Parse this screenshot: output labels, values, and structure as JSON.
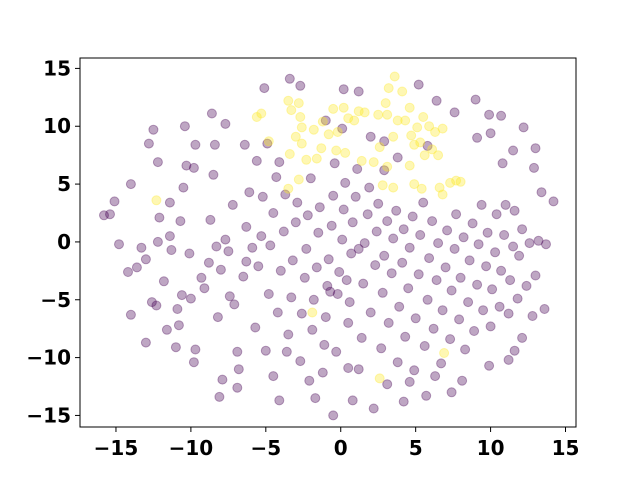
{
  "colors": {
    "purple": "#440154",
    "yellow": "#fde725",
    "axis": "#000000",
    "background": "#ffffff"
  },
  "marker_alpha": 0.35,
  "chart_data": {
    "type": "scatter",
    "title": "",
    "xlabel": "",
    "ylabel": "",
    "xlim": [
      -17.4,
      15.7
    ],
    "ylim": [
      -16.0,
      15.9
    ],
    "xticks": [
      -15,
      -10,
      -5,
      0,
      5,
      10,
      15
    ],
    "yticks": [
      -15,
      -10,
      -5,
      0,
      5,
      10,
      15
    ],
    "xtick_labels": [
      "−15",
      "−10",
      "−5",
      "0",
      "5",
      "10",
      "15"
    ],
    "ytick_labels": [
      "−15",
      "−10",
      "−5",
      "0",
      "5",
      "10",
      "15"
    ],
    "grid": false,
    "legend": false,
    "series": [
      {
        "color": "#fde725",
        "points": [
          [
            -5.6,
            10.8
          ],
          [
            -5.3,
            11.1
          ],
          [
            -4.8,
            8.7
          ],
          [
            -3.5,
            12.2
          ],
          [
            -3.3,
            11.4
          ],
          [
            -2.8,
            12.0
          ],
          [
            -2.7,
            10.8
          ],
          [
            -2.6,
            9.9
          ],
          [
            -3.0,
            9.1
          ],
          [
            -2.6,
            8.5
          ],
          [
            -1.8,
            9.7
          ],
          [
            -1.2,
            10.4
          ],
          [
            -0.8,
            9.3
          ],
          [
            -0.5,
            11.5
          ],
          [
            -0.2,
            9.5
          ],
          [
            0.2,
            11.6
          ],
          [
            0.5,
            10.7
          ],
          [
            0.9,
            10.5
          ],
          [
            1.2,
            11.3
          ],
          [
            1.6,
            11.2
          ],
          [
            2.5,
            11.0
          ],
          [
            3.0,
            12.0
          ],
          [
            3.1,
            11.0
          ],
          [
            3.2,
            13.3
          ],
          [
            3.6,
            14.3
          ],
          [
            4.1,
            13.0
          ],
          [
            3.8,
            10.5
          ],
          [
            3.5,
            9.1
          ],
          [
            4.3,
            10.5
          ],
          [
            4.6,
            11.6
          ],
          [
            4.7,
            9.2
          ],
          [
            5.1,
            9.9
          ],
          [
            5.5,
            10.8
          ],
          [
            5.9,
            10.0
          ],
          [
            6.3,
            9.5
          ],
          [
            6.8,
            9.8
          ],
          [
            4.9,
            8.4
          ],
          [
            5.3,
            8.6
          ],
          [
            5.6,
            7.5
          ],
          [
            6.1,
            8.0
          ],
          [
            6.5,
            7.5
          ],
          [
            4.6,
            6.6
          ],
          [
            4.9,
            5.0
          ],
          [
            5.4,
            4.6
          ],
          [
            6.6,
            4.7
          ],
          [
            6.8,
            4.1
          ],
          [
            7.3,
            5.1
          ],
          [
            7.7,
            5.3
          ],
          [
            8.0,
            5.2
          ],
          [
            -3.4,
            7.6
          ],
          [
            -2.3,
            7.1
          ],
          [
            -1.6,
            7.2
          ],
          [
            -1.3,
            8.1
          ],
          [
            -0.3,
            7.9
          ],
          [
            0.3,
            7.7
          ],
          [
            1.4,
            7.0
          ],
          [
            2.2,
            6.9
          ],
          [
            2.6,
            8.2
          ],
          [
            3.1,
            6.5
          ],
          [
            2.8,
            4.9
          ],
          [
            3.5,
            4.7
          ],
          [
            -12.3,
            3.6
          ],
          [
            -3.5,
            4.6
          ],
          [
            -2.8,
            5.4
          ],
          [
            -1.9,
            -6.1
          ],
          [
            6.9,
            -9.6
          ],
          [
            2.6,
            -11.8
          ]
        ]
      },
      {
        "color": "#440154",
        "points": [
          [
            -15.8,
            2.3
          ],
          [
            -15.4,
            2.4
          ],
          [
            -14.8,
            -0.2
          ],
          [
            -14.2,
            -2.6
          ],
          [
            -14.0,
            5.0
          ],
          [
            -13.6,
            -2.2
          ],
          [
            -13.0,
            -1.5
          ],
          [
            -12.6,
            -5.2
          ],
          [
            -12.3,
            -5.5
          ],
          [
            -12.2,
            0.0
          ],
          [
            -12.1,
            2.1
          ],
          [
            -11.6,
            -7.6
          ],
          [
            -11.8,
            -3.4
          ],
          [
            -11.4,
            3.4
          ],
          [
            -11.3,
            -0.7
          ],
          [
            -10.9,
            -5.8
          ],
          [
            -10.8,
            -7.2
          ],
          [
            -10.6,
            -4.6
          ],
          [
            -10.7,
            1.8
          ],
          [
            -10.5,
            4.7
          ],
          [
            -10.4,
            10.0
          ],
          [
            -10.1,
            -1.0
          ],
          [
            -10.0,
            -4.9
          ],
          [
            -9.8,
            6.4
          ],
          [
            -9.7,
            -9.3
          ],
          [
            -9.3,
            -3.1
          ],
          [
            -9.1,
            -4.0
          ],
          [
            -8.8,
            -1.8
          ],
          [
            -8.7,
            1.9
          ],
          [
            -8.5,
            5.8
          ],
          [
            -8.4,
            8.4
          ],
          [
            -8.2,
            -6.5
          ],
          [
            -8.0,
            -2.4
          ],
          [
            -7.7,
            0.2
          ],
          [
            -7.5,
            -0.8
          ],
          [
            -7.2,
            3.2
          ],
          [
            -7.1,
            -5.4
          ],
          [
            -6.9,
            -9.5
          ],
          [
            -6.8,
            -11.0
          ],
          [
            -6.5,
            -3.0
          ],
          [
            -6.3,
            1.3
          ],
          [
            -6.1,
            4.3
          ],
          [
            -5.9,
            -0.5
          ],
          [
            -5.7,
            -7.4
          ],
          [
            -5.5,
            -2.1
          ],
          [
            -5.3,
            0.5
          ],
          [
            -5.2,
            3.9
          ],
          [
            -5.0,
            -9.4
          ],
          [
            -4.8,
            -4.5
          ],
          [
            -4.7,
            -0.3
          ],
          [
            -4.5,
            2.5
          ],
          [
            -4.3,
            5.6
          ],
          [
            -4.2,
            -6.1
          ],
          [
            -4.0,
            -2.5
          ],
          [
            -3.8,
            0.9
          ],
          [
            -3.7,
            4.1
          ],
          [
            -3.5,
            -8.0
          ],
          [
            -3.3,
            -4.8
          ],
          [
            -3.2,
            -1.6
          ],
          [
            -3.0,
            1.7
          ],
          [
            -2.9,
            3.4
          ],
          [
            -2.7,
            -10.3
          ],
          [
            -2.6,
            -6.2
          ],
          [
            -2.4,
            -3.1
          ],
          [
            -2.3,
            -0.6
          ],
          [
            -2.2,
            2.3
          ],
          [
            -2.0,
            5.5
          ],
          [
            -1.9,
            -7.6
          ],
          [
            -1.8,
            -5.0
          ],
          [
            -1.6,
            -2.2
          ],
          [
            -1.5,
            0.8
          ],
          [
            -1.4,
            3.0
          ],
          [
            -1.2,
            -11.3
          ],
          [
            -1.1,
            -8.9
          ],
          [
            -1.0,
            -6.5
          ],
          [
            -0.9,
            -3.8
          ],
          [
            -0.8,
            -1.5
          ],
          [
            -0.6,
            1.4
          ],
          [
            -0.5,
            4.0
          ],
          [
            -0.4,
            6.8
          ],
          [
            -0.3,
            -9.5
          ],
          [
            -0.2,
            -4.5
          ],
          [
            -0.1,
            -2.6
          ],
          [
            0.1,
            0.2
          ],
          [
            0.2,
            2.8
          ],
          [
            0.3,
            5.1
          ],
          [
            0.5,
            -7.0
          ],
          [
            0.6,
            -5.2
          ],
          [
            0.7,
            -1.0
          ],
          [
            0.8,
            1.7
          ],
          [
            1.0,
            3.9
          ],
          [
            1.1,
            6.3
          ],
          [
            1.2,
            -11.0
          ],
          [
            1.4,
            -8.3
          ],
          [
            1.5,
            -3.6
          ],
          [
            1.6,
            -0.1
          ],
          [
            1.8,
            2.4
          ],
          [
            1.9,
            4.7
          ],
          [
            2.0,
            -6.1
          ],
          [
            2.2,
            -14.4
          ],
          [
            2.3,
            -2.0
          ],
          [
            2.4,
            0.9
          ],
          [
            2.5,
            3.3
          ],
          [
            2.7,
            -9.2
          ],
          [
            2.8,
            -4.4
          ],
          [
            2.9,
            -1.2
          ],
          [
            3.1,
            1.8
          ],
          [
            3.2,
            -7.0
          ],
          [
            3.4,
            -2.7
          ],
          [
            3.5,
            0.3
          ],
          [
            3.7,
            2.7
          ],
          [
            3.8,
            -10.4
          ],
          [
            3.9,
            -5.6
          ],
          [
            4.1,
            -1.8
          ],
          [
            4.2,
            1.1
          ],
          [
            4.3,
            -8.2
          ],
          [
            4.5,
            -4.0
          ],
          [
            4.6,
            -0.5
          ],
          [
            4.8,
            2.2
          ],
          [
            4.9,
            -11.1
          ],
          [
            5.0,
            -6.6
          ],
          [
            5.2,
            -2.8
          ],
          [
            5.3,
            0.6
          ],
          [
            5.5,
            3.4
          ],
          [
            5.6,
            -9.0
          ],
          [
            5.8,
            -5.0
          ],
          [
            5.9,
            -1.4
          ],
          [
            6.1,
            1.8
          ],
          [
            6.2,
            -7.5
          ],
          [
            6.4,
            -3.3
          ],
          [
            6.5,
            -0.1
          ],
          [
            6.7,
            -10.5
          ],
          [
            6.8,
            -5.9
          ],
          [
            7.0,
            -2.2
          ],
          [
            7.1,
            1.0
          ],
          [
            7.3,
            -8.4
          ],
          [
            7.4,
            -4.2
          ],
          [
            7.6,
            -0.6
          ],
          [
            7.7,
            2.4
          ],
          [
            7.9,
            -6.7
          ],
          [
            8.0,
            -3.1
          ],
          [
            8.2,
            0.4
          ],
          [
            8.3,
            -9.3
          ],
          [
            8.5,
            -5.2
          ],
          [
            8.6,
            -1.6
          ],
          [
            8.8,
            1.6
          ],
          [
            8.9,
            -7.7
          ],
          [
            9.1,
            -3.7
          ],
          [
            9.2,
            -0.2
          ],
          [
            9.4,
            3.2
          ],
          [
            9.5,
            -5.9
          ],
          [
            9.7,
            -2.1
          ],
          [
            9.8,
            0.8
          ],
          [
            10.0,
            -7.3
          ],
          [
            10.1,
            -4.1
          ],
          [
            10.3,
            -0.9
          ],
          [
            10.4,
            2.4
          ],
          [
            10.6,
            -5.6
          ],
          [
            10.7,
            -2.5
          ],
          [
            10.9,
            0.6
          ],
          [
            11.0,
            3.2
          ],
          [
            11.2,
            -6.2
          ],
          [
            11.3,
            -3.3
          ],
          [
            11.5,
            -0.4
          ],
          [
            11.6,
            2.7
          ],
          [
            11.8,
            -4.9
          ],
          [
            11.9,
            -1.2
          ],
          [
            12.1,
            1.1
          ],
          [
            12.4,
            -3.8
          ],
          [
            12.6,
            -0.1
          ],
          [
            12.8,
            -6.4
          ],
          [
            13.0,
            -2.9
          ],
          [
            13.2,
            0.1
          ],
          [
            13.4,
            4.3
          ],
          [
            13.7,
            -0.2
          ],
          [
            14.2,
            3.5
          ],
          [
            -8.6,
            11.1
          ],
          [
            -7.7,
            10.2
          ],
          [
            -6.4,
            8.4
          ],
          [
            -5.6,
            7.0
          ],
          [
            -4.9,
            8.5
          ],
          [
            -4.1,
            6.9
          ],
          [
            -1.0,
            10.5
          ],
          [
            0.1,
            9.8
          ],
          [
            1.2,
            13.0
          ],
          [
            2.0,
            9.1
          ],
          [
            2.9,
            8.7
          ],
          [
            3.8,
            7.3
          ],
          [
            5.8,
            8.3
          ],
          [
            7.6,
            11.2
          ],
          [
            9.1,
            9.0
          ],
          [
            10.0,
            9.4
          ],
          [
            11.5,
            7.9
          ],
          [
            12.9,
            6.4
          ],
          [
            -2.7,
            13.5
          ],
          [
            -5.1,
            13.3
          ],
          [
            0.2,
            13.2
          ],
          [
            -8.3,
            -0.4
          ],
          [
            -3.6,
            -9.5
          ],
          [
            0.5,
            -10.9
          ],
          [
            5.7,
            -13.3
          ],
          [
            -4.5,
            -11.6
          ],
          [
            -1.7,
            -13.5
          ],
          [
            3.1,
            -12.3
          ],
          [
            -7.9,
            -11.9
          ],
          [
            -6.9,
            -12.6
          ],
          [
            9.9,
            -10.7
          ],
          [
            8.1,
            -12.0
          ],
          [
            4.6,
            -12.1
          ],
          [
            -9.7,
            8.4
          ],
          [
            9.9,
            11.0
          ],
          [
            10.7,
            10.9
          ],
          [
            6.4,
            12.2
          ],
          [
            -12.8,
            8.5
          ],
          [
            -11.4,
            0.5
          ],
          [
            -13.3,
            -0.5
          ],
          [
            13.0,
            8.1
          ],
          [
            12.2,
            9.9
          ],
          [
            -6.3,
            -1.7
          ],
          [
            -7.4,
            -4.7
          ],
          [
            1.2,
            -0.6
          ],
          [
            0.4,
            -3.3
          ],
          [
            -0.7,
            -4.3
          ],
          [
            2.9,
            6.2
          ],
          [
            -2.1,
            -12.0
          ],
          [
            11.2,
            -10.2
          ],
          [
            6.3,
            -11.6
          ],
          [
            -11.0,
            -9.1
          ],
          [
            -12.5,
            9.7
          ],
          [
            9.0,
            12.3
          ],
          [
            -9.8,
            -10.4
          ],
          [
            -4.1,
            -13.7
          ],
          [
            4.2,
            -13.8
          ],
          [
            7.4,
            -13.0
          ],
          [
            -0.5,
            -15.0
          ],
          [
            -8.1,
            -13.4
          ],
          [
            5.2,
            13.6
          ],
          [
            0.8,
            -13.7
          ],
          [
            -3.4,
            14.1
          ],
          [
            12.1,
            -8.3
          ],
          [
            -14.0,
            -6.3
          ],
          [
            13.6,
            -5.8
          ],
          [
            11.6,
            -9.4
          ],
          [
            -13.0,
            -8.7
          ],
          [
            10.8,
            6.8
          ],
          [
            -10.3,
            6.6
          ],
          [
            -12.2,
            6.9
          ],
          [
            -15.1,
            3.5
          ]
        ]
      }
    ]
  }
}
